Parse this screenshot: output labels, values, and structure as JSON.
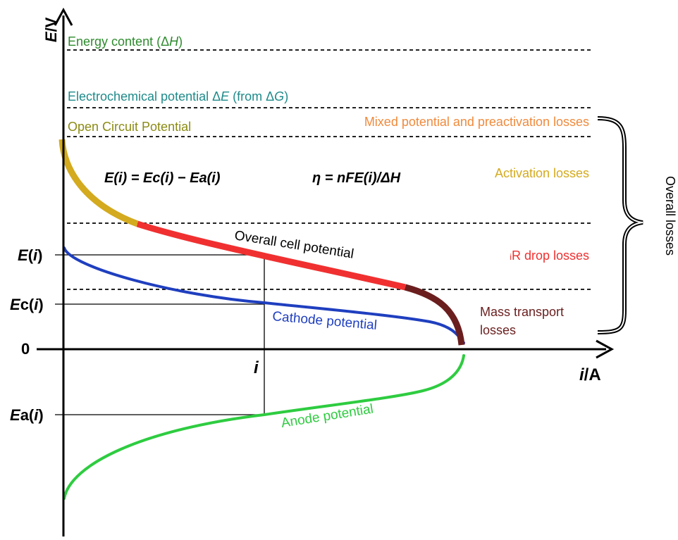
{
  "axes": {
    "y_label_italic": "E",
    "y_label_rest": "/V",
    "x_label_italic": "i",
    "x_label_rest": "/A",
    "origin": "0",
    "i_tick": "i"
  },
  "y_ticks": {
    "E_main": "E",
    "E_paren_open": "(",
    "E_i": "i",
    "E_paren_close": ")",
    "Ec_E": "E",
    "Ec_c": "c(",
    "Ec_i": "i",
    "Ec_close": ")",
    "Ea_E": "E",
    "Ea_a": "a(",
    "Ea_i": "i",
    "Ea_close": ")"
  },
  "levels": {
    "energy_prefix": "Energy content (Δ",
    "energy_var": "H",
    "energy_suffix": ")",
    "electrochem_prefix": "Electrochemical potential Δ",
    "electrochem_var": "E",
    "electrochem_mid": " (from Δ",
    "electrochem_var2": "G",
    "electrochem_suffix": ")",
    "ocp": "Open Circuit Potential"
  },
  "losses": {
    "mixed": "Mixed potential and preactivation losses",
    "activation": "Activation losses",
    "ir_prefix": "i",
    "ir_rest": "R drop losses",
    "mass_line1": "Mass transport",
    "mass_line2": "losses",
    "overall": "Overall losses"
  },
  "curves": {
    "overall": "Overall cell potential",
    "cathode": "Cathode potential",
    "anode": "Anode potential"
  },
  "equations": {
    "eq1": "E(i) = Ec(i) − Ea(i)",
    "eq2": "η = nFE(i)/ΔH"
  },
  "colors": {
    "energy": "#2e8b2e",
    "electrochem": "#1f8a8a",
    "ocp": "#8b8b14",
    "mixed": "#f08a3c",
    "activation": "#d4aa1e",
    "ir": "#f03030",
    "mass": "#6b1e1e",
    "cathode": "#1f3fbf",
    "anode": "#2ecc40"
  }
}
